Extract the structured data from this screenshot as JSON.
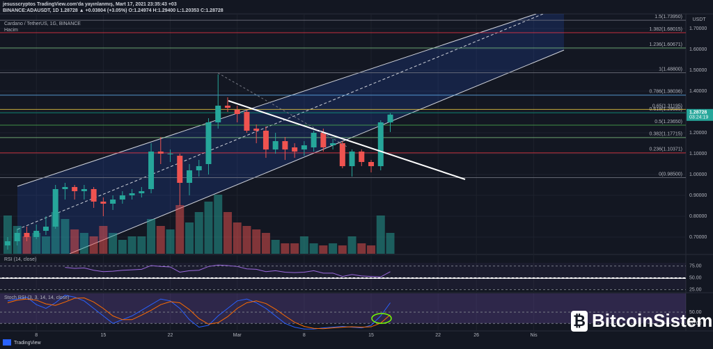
{
  "header": {
    "line1": "jesusscryptos TradingView.com'da yayınlanmış, Mart 17, 2021 23:35:43 +03",
    "line2": "BINANCE:ADAUSDT, 1D 1.28728 ▲ +0.03804 (+3.05%) O:1.24974 H:1.29400 L:1.20353 C:1.28728"
  },
  "brand": "TradingView",
  "watermark": "BitcoinSistemi",
  "chart_data": [
    {
      "type": "candlestick",
      "title": "Cardano / TetherUS, 1G, BINANCE",
      "volume_label": "Hacim",
      "axis_unit": "USDT",
      "countdown": "03:24:19",
      "up_color": "#26a69a",
      "down_color": "#ef5350",
      "x": [
        4,
        5,
        6,
        7,
        8,
        9,
        10,
        11,
        12,
        13,
        14,
        15,
        16,
        17,
        18,
        19,
        20,
        21,
        22,
        23,
        24,
        25,
        26,
        27,
        28,
        29,
        30,
        31,
        32,
        33,
        34,
        35,
        36,
        37,
        38,
        39,
        40,
        41,
        42,
        43,
        44
      ],
      "open": [
        0.66,
        0.68,
        0.72,
        0.7,
        0.73,
        0.75,
        0.93,
        0.94,
        0.92,
        0.93,
        0.87,
        0.86,
        0.88,
        0.9,
        0.91,
        0.93,
        1.11,
        1.1,
        1.09,
        0.96,
        1.02,
        1.05,
        1.25,
        1.33,
        1.31,
        1.3,
        1.22,
        1.21,
        1.12,
        1.16,
        1.13,
        1.12,
        1.13,
        1.2,
        1.14,
        1.15,
        1.04,
        1.11,
        1.06,
        1.04,
        1.24974
      ],
      "high": [
        0.7,
        0.74,
        0.75,
        0.76,
        0.8,
        0.95,
        0.96,
        0.95,
        0.95,
        0.94,
        0.89,
        0.9,
        0.92,
        0.93,
        0.94,
        1.15,
        1.18,
        1.12,
        1.1,
        1.05,
        1.07,
        1.27,
        1.48,
        1.37,
        1.33,
        1.31,
        1.24,
        1.23,
        1.2,
        1.18,
        1.15,
        1.16,
        1.21,
        1.22,
        1.17,
        1.16,
        1.12,
        1.12,
        1.07,
        1.26,
        1.294
      ],
      "low": [
        0.64,
        0.66,
        0.68,
        0.69,
        0.71,
        0.74,
        0.88,
        0.88,
        0.88,
        0.84,
        0.8,
        0.83,
        0.86,
        0.88,
        0.89,
        0.91,
        1.05,
        1.06,
        0.85,
        0.9,
        0.99,
        1.0,
        1.22,
        1.3,
        1.25,
        1.2,
        1.15,
        1.08,
        1.1,
        1.07,
        1.08,
        1.09,
        1.11,
        1.11,
        1.12,
        1.03,
        0.99,
        1.04,
        1.01,
        1.02,
        1.20353
      ],
      "close": [
        0.68,
        0.72,
        0.7,
        0.73,
        0.75,
        0.93,
        0.94,
        0.92,
        0.93,
        0.87,
        0.86,
        0.88,
        0.9,
        0.91,
        0.92,
        1.11,
        1.1,
        1.1,
        0.96,
        1.02,
        1.04,
        1.25,
        1.33,
        1.32,
        1.29,
        1.21,
        1.21,
        1.12,
        1.16,
        1.12,
        1.11,
        1.14,
        1.2,
        1.13,
        1.15,
        1.04,
        1.11,
        1.06,
        1.04,
        1.25,
        1.28728
      ],
      "volume": [
        55,
        40,
        25,
        30,
        25,
        60,
        50,
        35,
        30,
        25,
        40,
        30,
        20,
        25,
        25,
        50,
        40,
        35,
        70,
        45,
        60,
        75,
        85,
        60,
        45,
        40,
        35,
        30,
        20,
        15,
        15,
        25,
        15,
        12,
        15,
        12,
        25,
        15,
        12,
        55,
        30
      ],
      "xlim": [
        3.2,
        74.9
      ],
      "ylim": [
        0.62,
        1.77
      ],
      "xticks": [
        {
          "value": 7,
          "label": "8"
        },
        {
          "value": 14,
          "label": "15"
        },
        {
          "value": 21,
          "label": "22"
        },
        {
          "value": 28,
          "label": "Mar"
        },
        {
          "value": 35,
          "label": "8"
        },
        {
          "value": 42,
          "label": "15"
        },
        {
          "value": 49,
          "label": "22"
        },
        {
          "value": 53,
          "label": "26"
        },
        {
          "value": 59,
          "label": "Nis"
        }
      ],
      "yticks": [
        {
          "value": 0.7,
          "label": "0.70000"
        },
        {
          "value": 0.8,
          "label": "0.80000"
        },
        {
          "value": 0.9,
          "label": "0.90000"
        },
        {
          "value": 1.0,
          "label": "1.00000"
        },
        {
          "value": 1.1,
          "label": "1.10000"
        },
        {
          "value": 1.2,
          "label": "1.20000"
        },
        {
          "value": 1.3,
          "label": "1.30000"
        },
        {
          "value": 1.4,
          "label": "1.40000"
        },
        {
          "value": 1.5,
          "label": "1.50000"
        },
        {
          "value": 1.6,
          "label": "1.60000"
        },
        {
          "value": 1.7,
          "label": "1.70000"
        }
      ],
      "fib_levels": [
        {
          "value": 0.985,
          "label": "0(0.98500)",
          "color": "#787b86"
        },
        {
          "value": 1.10371,
          "label": "0.236(1.10371)",
          "color": "#f23645"
        },
        {
          "value": 1.17715,
          "label": "0.382(1.17715)",
          "color": "#81c784"
        },
        {
          "value": 1.2365,
          "label": "0.5(1.23650)",
          "color": "#4caf50"
        },
        {
          "value": 1.29585,
          "label": "0.618(1.29585)",
          "color": "#089981"
        },
        {
          "value": 1.31195,
          "label": "0.65(1.31195)",
          "color": "#f5d142"
        },
        {
          "value": 1.38036,
          "label": "0.786(1.38036)",
          "color": "#64b5f6"
        },
        {
          "value": 1.488,
          "label": "1(1.48800)",
          "color": "#787b86"
        },
        {
          "value": 1.60671,
          "label": "1.236(1.60671)",
          "color": "#81c784"
        },
        {
          "value": 1.68015,
          "label": "1.382(1.68015)",
          "color": "#f23645"
        },
        {
          "value": 1.7395,
          "label": "1.5(1.73950)",
          "color": "#787b86"
        }
      ]
    },
    {
      "type": "line",
      "title": "RSI (14, close)",
      "ylim": [
        20,
        98
      ],
      "yticks": [
        {
          "value": 75,
          "label": "75.00"
        },
        {
          "value": 50,
          "label": "50.00"
        },
        {
          "value": 25,
          "label": "25.00"
        }
      ],
      "series": [
        {
          "color": "#9c6ade",
          "values": [
            null,
            null,
            null,
            null,
            null,
            null,
            72,
            70,
            71,
            66,
            63,
            64,
            66,
            67,
            68,
            76,
            74,
            73,
            62,
            65,
            66,
            74,
            77,
            76,
            74,
            69,
            68,
            63,
            65,
            62,
            61,
            62,
            65,
            60,
            60,
            53,
            57,
            54,
            53,
            52,
            63
          ]
        }
      ]
    },
    {
      "type": "line",
      "title": "Stoch RSI (3, 3, 14, 14, close)",
      "ylim": [
        0,
        100
      ],
      "yticks": [
        {
          "value": 50,
          "label": "50.00"
        },
        {
          "value": 20,
          "label": "20.00"
        }
      ],
      "series": [
        {
          "color": "#2962ff",
          "values": [
            80,
            85,
            90,
            70,
            60,
            75,
            95,
            90,
            80,
            60,
            40,
            20,
            30,
            40,
            55,
            70,
            85,
            80,
            60,
            30,
            10,
            15,
            40,
            60,
            80,
            85,
            75,
            60,
            40,
            20,
            10,
            5,
            5,
            8,
            10,
            12,
            10,
            8,
            15,
            40,
            75
          ]
        },
        {
          "color": "#ff6d00",
          "values": [
            75,
            82,
            85,
            82,
            72,
            68,
            77,
            87,
            88,
            77,
            60,
            40,
            30,
            30,
            42,
            55,
            70,
            78,
            75,
            57,
            33,
            18,
            22,
            38,
            60,
            75,
            80,
            73,
            58,
            40,
            23,
            12,
            7,
            6,
            8,
            10,
            11,
            10,
            11,
            21,
            43
          ]
        }
      ]
    }
  ]
}
